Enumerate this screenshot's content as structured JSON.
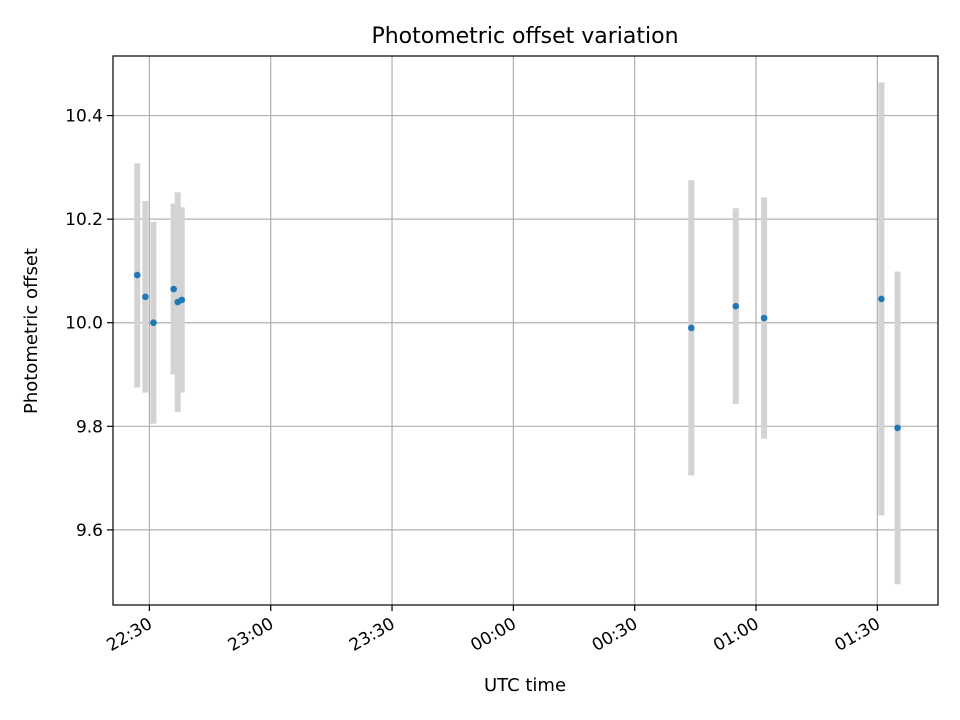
{
  "chart_data": {
    "type": "scatter",
    "title": "Photometric offset variation",
    "xlabel": "UTC time",
    "ylabel": "Photometric offset",
    "x_axis_kind": "time",
    "xlim": [
      "22:21",
      "01:45"
    ],
    "ylim": [
      9.455,
      10.515
    ],
    "x_ticks": [
      "22:30",
      "23:00",
      "23:30",
      "00:00",
      "00:30",
      "01:00",
      "01:30"
    ],
    "y_ticks": [
      9.6,
      9.8,
      10.0,
      10.2,
      10.4
    ],
    "y_tick_labels": [
      "9.6",
      "9.8",
      "10.0",
      "10.2",
      "10.4"
    ],
    "grid": true,
    "point_color": "#1f77b4",
    "errorbar_color": "#d3d3d3",
    "points": [
      {
        "x": "22:27",
        "y": 10.092,
        "yerr_low": 9.875,
        "yerr_high": 10.308
      },
      {
        "x": "22:29",
        "y": 10.05,
        "yerr_low": 9.865,
        "yerr_high": 10.235
      },
      {
        "x": "22:31",
        "y": 10.0,
        "yerr_low": 9.805,
        "yerr_high": 10.195
      },
      {
        "x": "22:36",
        "y": 10.065,
        "yerr_low": 9.9,
        "yerr_high": 10.23
      },
      {
        "x": "22:37",
        "y": 10.04,
        "yerr_low": 9.828,
        "yerr_high": 10.252
      },
      {
        "x": "22:38",
        "y": 10.044,
        "yerr_low": 9.865,
        "yerr_high": 10.223
      },
      {
        "x": "00:44",
        "y": 9.99,
        "yerr_low": 9.705,
        "yerr_high": 10.275
      },
      {
        "x": "00:55",
        "y": 10.032,
        "yerr_low": 9.843,
        "yerr_high": 10.221
      },
      {
        "x": "01:02",
        "y": 10.009,
        "yerr_low": 9.776,
        "yerr_high": 10.242
      },
      {
        "x": "01:31",
        "y": 10.046,
        "yerr_low": 9.628,
        "yerr_high": 10.464
      },
      {
        "x": "01:35",
        "y": 9.797,
        "yerr_low": 9.495,
        "yerr_high": 10.099
      }
    ]
  }
}
